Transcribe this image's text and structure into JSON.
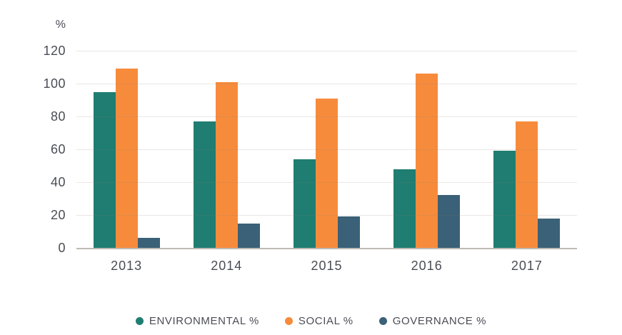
{
  "chart_data": {
    "type": "bar",
    "title": "",
    "xlabel": "",
    "ylabel": "%",
    "categories": [
      "2013",
      "2014",
      "2015",
      "2016",
      "2017"
    ],
    "series": [
      {
        "name": "ENVIRONMENTAL %",
        "color": "#1f7d71",
        "values": [
          95,
          77,
          54,
          48,
          59
        ]
      },
      {
        "name": "SOCIAL %",
        "color": "#f78b3c",
        "values": [
          109,
          101,
          91,
          106,
          77
        ]
      },
      {
        "name": "GOVERNANCE %",
        "color": "#3a6177",
        "values": [
          6,
          15,
          19,
          32,
          18
        ]
      }
    ],
    "ylim": [
      0,
      120
    ],
    "yticks": [
      120,
      100,
      80,
      60,
      40,
      20,
      0
    ],
    "grid": true,
    "legend_position": "bottom",
    "colors": {
      "axis_text": "#4b4d55",
      "gridline": "#eae7e2",
      "axis_line": "#bdbab5",
      "background": "#ffffff"
    }
  }
}
